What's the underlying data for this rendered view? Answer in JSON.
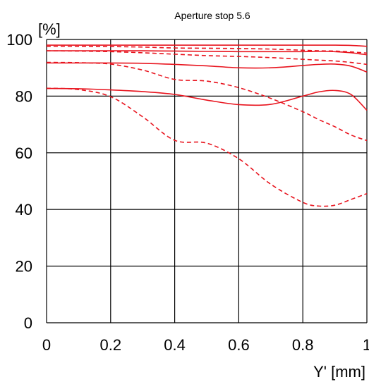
{
  "chart_data": {
    "type": "line",
    "title": "Aperture stop 5.6",
    "xlabel": "Y' [mm]",
    "ylabel": "[%]",
    "xlim": [
      0,
      1
    ],
    "ylim": [
      0,
      100
    ],
    "x_ticks": [
      0,
      0.2,
      0.4,
      0.6,
      0.8,
      1
    ],
    "x_tick_labels": [
      "0",
      "0.2",
      "0.4",
      "0.6",
      "0.8",
      "1"
    ],
    "y_ticks": [
      0,
      20,
      40,
      60,
      80,
      100
    ],
    "y_tick_labels": [
      "0",
      "20",
      "40",
      "60",
      "80",
      "100"
    ],
    "grid": true,
    "line_color": "#e8141e",
    "x": [
      0,
      0.1,
      0.2,
      0.3,
      0.4,
      0.5,
      0.6,
      0.7,
      0.8,
      0.85,
      0.9,
      0.95,
      1.0
    ],
    "series": [
      {
        "style": "solid",
        "values": [
          98,
          98,
          98,
          98,
          98,
          98,
          98,
          98,
          98,
          98,
          98,
          97.9,
          97.6
        ]
      },
      {
        "style": "dashed",
        "values": [
          97.6,
          97.6,
          97.5,
          97.3,
          97.0,
          96.9,
          96.8,
          96.6,
          96.2,
          96.0,
          95.9,
          95.6,
          95.2
        ]
      },
      {
        "style": "solid",
        "values": [
          96.0,
          96.0,
          96.0,
          96.0,
          95.9,
          95.8,
          95.7,
          95.7,
          95.7,
          95.8,
          95.7,
          95.3,
          94.6
        ]
      },
      {
        "style": "dashed",
        "values": [
          96.0,
          95.9,
          95.7,
          95.3,
          94.8,
          94.3,
          94.0,
          93.6,
          93.0,
          92.7,
          92.4,
          91.9,
          91.2
        ]
      },
      {
        "style": "solid",
        "values": [
          91.7,
          91.7,
          91.7,
          91.6,
          91.2,
          90.7,
          90.0,
          90.0,
          90.8,
          91.2,
          91.3,
          90.6,
          88.5
        ]
      },
      {
        "style": "dashed",
        "values": [
          91.9,
          91.8,
          91.3,
          89.2,
          85.9,
          85.3,
          83.0,
          79.2,
          74.5,
          71.7,
          69.2,
          66.3,
          64.3
        ]
      },
      {
        "style": "solid",
        "values": [
          82.7,
          82.6,
          82.2,
          81.6,
          80.6,
          78.6,
          77.0,
          77.1,
          80.0,
          81.5,
          82.0,
          80.6,
          75.0
        ]
      },
      {
        "style": "dashed",
        "values": [
          82.8,
          82.3,
          79.8,
          72.7,
          64.4,
          63.4,
          57.9,
          48.9,
          42.5,
          41.2,
          41.5,
          43.5,
          45.6
        ]
      }
    ]
  }
}
